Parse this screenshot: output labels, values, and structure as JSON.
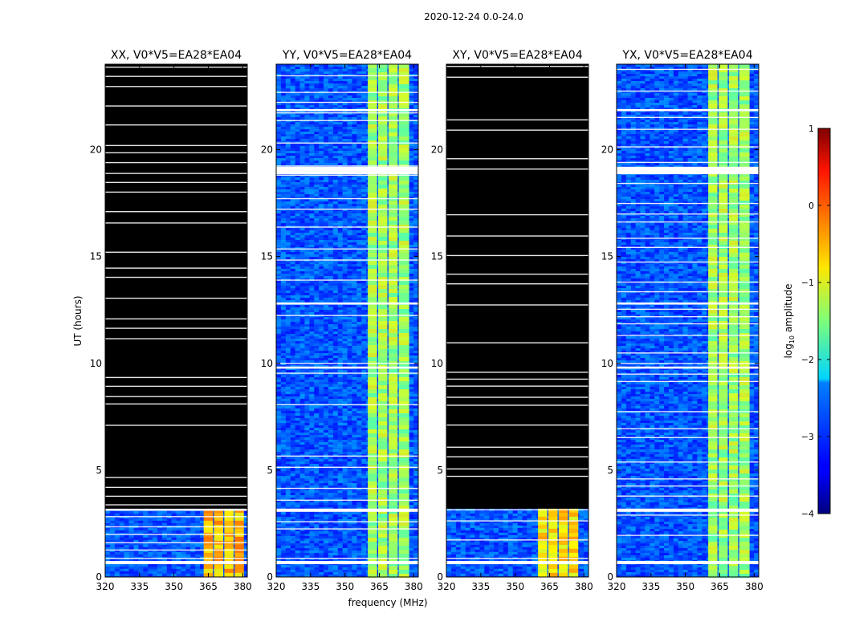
{
  "figure": {
    "suptitle": "2020-12-24 0.0-24.0"
  },
  "chart_data": {
    "type": "heatmap",
    "title": "2020-12-24 0.0-24.0",
    "xlabel": "frequency (MHz)",
    "ylabel": "UT (hours)",
    "xlim": [
      320,
      382
    ],
    "ylim": [
      0,
      24
    ],
    "x_ticks": [
      "320",
      "335",
      "350",
      "365",
      "380"
    ],
    "x_tick_values": [
      320,
      335,
      350,
      365,
      380
    ],
    "y_ticks": [
      "0",
      "5",
      "10",
      "15",
      "20"
    ],
    "y_tick_values": [
      0,
      5,
      10,
      15,
      20
    ],
    "colorbar": {
      "label": "log10 amplitude",
      "label_base": "log",
      "label_sub": "10",
      "label_rest": " amplitude",
      "range": [
        -4,
        1
      ],
      "ticks": [
        "1",
        "0",
        "−1",
        "−2",
        "−3",
        "−4"
      ],
      "tick_values": [
        1,
        0,
        -1,
        -2,
        -3,
        -4
      ],
      "colormap": "jet"
    },
    "panels": [
      {
        "title": "XX, V0*V5=EA28*EA04",
        "polarization": "XX",
        "data_hours": [
          0,
          3.2
        ],
        "blank_bands_hours": [
          [
            0.6,
            0.75
          ],
          [
            3.1,
            3.2
          ],
          [
            3.2,
            24
          ]
        ],
        "rfi_blocks_mhz": [
          [
            363,
            367
          ],
          [
            367.5,
            371.5
          ],
          [
            372,
            376
          ],
          [
            376.5,
            380.5
          ]
        ],
        "rfi_level": -0.6
      },
      {
        "title": "YY, V0*V5=EA28*EA04",
        "polarization": "YY",
        "data_hours": [
          0,
          24
        ],
        "blank_bands_hours": [
          [
            0.6,
            0.75
          ],
          [
            3.05,
            3.2
          ],
          [
            9.75,
            9.85
          ],
          [
            12.75,
            12.85
          ],
          [
            18.85,
            19.2
          ],
          [
            21.8,
            21.9
          ]
        ],
        "rfi_blocks_mhz": [
          [
            360,
            364
          ],
          [
            364.5,
            368.5
          ],
          [
            369,
            373
          ],
          [
            373.5,
            378
          ]
        ],
        "rfi_level": -1.4
      },
      {
        "title": "XY, V0*V5=EA28*EA04",
        "polarization": "XY",
        "data_hours": [
          0,
          3.2
        ],
        "blank_bands_hours": [
          [
            0.6,
            0.75
          ],
          [
            3.2,
            24
          ]
        ],
        "rfi_blocks_mhz": [
          [
            360,
            364
          ],
          [
            364.5,
            368.5
          ],
          [
            369,
            373
          ],
          [
            373.5,
            377.5
          ]
        ],
        "rfi_level": -0.8
      },
      {
        "title": "YX, V0*V5=EA28*EA04",
        "polarization": "YX",
        "data_hours": [
          0,
          24
        ],
        "blank_bands_hours": [
          [
            0.6,
            0.75
          ],
          [
            3.05,
            3.2
          ],
          [
            9.75,
            9.85
          ],
          [
            12.75,
            12.85
          ],
          [
            18.85,
            19.2
          ],
          [
            21.8,
            21.9
          ]
        ],
        "rfi_blocks_mhz": [
          [
            360,
            364
          ],
          [
            364.5,
            368.5
          ],
          [
            369,
            373
          ],
          [
            373.5,
            378
          ]
        ],
        "rfi_level": -1.4
      }
    ]
  }
}
